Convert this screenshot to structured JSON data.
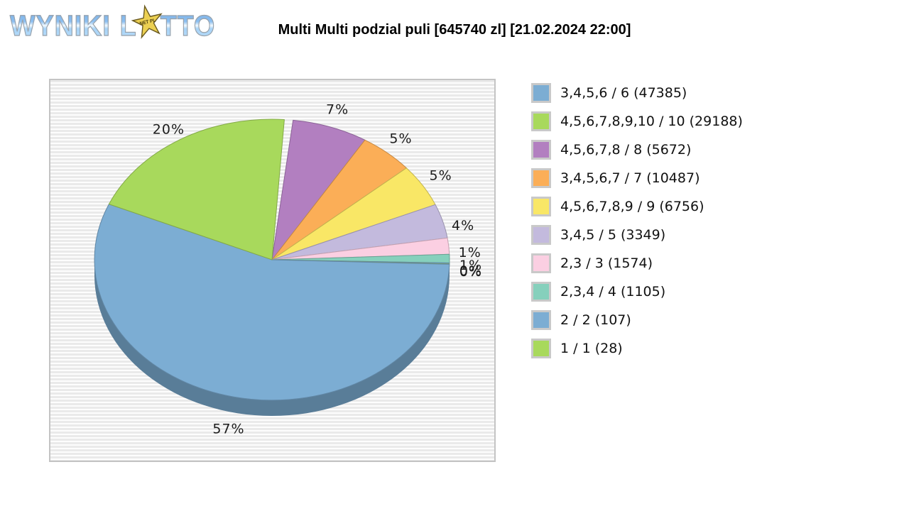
{
  "page": {
    "title": "Multi Multi podzial puli [645740 zl] [21.02.2024 22:00]"
  },
  "logo": {
    "word1": "WYNIKI",
    "word2_start": "L",
    "word2_end": "TTO",
    "star_text": "NET PL"
  },
  "chart_data": {
    "type": "pie",
    "title": "Multi Multi podzial puli [645740 zl] [21.02.2024 22:00]",
    "pool_amount_text": "645740 zl",
    "draw_datetime_text": "21.02.2024 22:00",
    "legend_position": "right",
    "categories": [
      "3,4,5,6 / 6",
      "4,5,6,7,8,9,10 / 10",
      "4,5,6,7,8 / 8",
      "3,4,5,6,7 / 7",
      "4,5,6,7,8,9 / 9",
      "3,4,5 / 5",
      "2,3 / 3",
      "2,3,4 / 4",
      "2 / 2",
      "1 / 1"
    ],
    "winner_counts": [
      47385,
      29188,
      5672,
      10487,
      6756,
      3349,
      1574,
      1105,
      107,
      28
    ],
    "share_labels": [
      "57%",
      "20%",
      "7%",
      "5%",
      "5%",
      "4%",
      "1%",
      "1%",
      "0%",
      "0%"
    ],
    "colors": [
      "#7cadd3",
      "#a8d95c",
      "#b27fc0",
      "#fbae57",
      "#f9e766",
      "#c3badd",
      "#fbcfe2",
      "#86d0bc",
      "#7cadd3",
      "#a8d95c"
    ],
    "slices": [
      {
        "name": "start-gap",
        "color": null,
        "draw": 0.8,
        "label": null
      },
      {
        "name": "tier-8of8",
        "color": "#b27fc0",
        "draw": 7,
        "label": "7%"
      },
      {
        "name": "tier-7of7",
        "color": "#fbae57",
        "draw": 5,
        "label": "5%"
      },
      {
        "name": "tier-9of9",
        "color": "#f9e766",
        "draw": 5,
        "label": "5%"
      },
      {
        "name": "tier-5of5",
        "color": "#c3badd",
        "draw": 4,
        "label": "4%"
      },
      {
        "name": "tier-3of3",
        "color": "#fbcfe2",
        "draw": 1.9,
        "label": "1%"
      },
      {
        "name": "tier-4of4",
        "color": "#86d0bc",
        "draw": 1.0,
        "label": "1%"
      },
      {
        "name": "tier-2of2",
        "color": "#7cadd3",
        "draw": 0.12,
        "label": "0%"
      },
      {
        "name": "tier-1of1",
        "color": "#a8d95c",
        "draw": 0.04,
        "label": "0%"
      },
      {
        "name": "tier-6of6",
        "color": "#7cadd3",
        "draw": 57,
        "label": "57%"
      },
      {
        "name": "tier-10of10",
        "color": "#a8d95c",
        "draw": 20,
        "label": "20%"
      }
    ]
  },
  "legend": {
    "items": [
      {
        "label": "3,4,5,6 / 6 (47385)",
        "color": "#7cadd3"
      },
      {
        "label": "4,5,6,7,8,9,10 / 10 (29188)",
        "color": "#a8d95c"
      },
      {
        "label": "4,5,6,7,8 / 8 (5672)",
        "color": "#b27fc0"
      },
      {
        "label": "3,4,5,6,7 / 7 (10487)",
        "color": "#fbae57"
      },
      {
        "label": "4,5,6,7,8,9 / 9 (6756)",
        "color": "#f9e766"
      },
      {
        "label": "3,4,5 / 5 (3349)",
        "color": "#c3badd"
      },
      {
        "label": "2,3 / 3 (1574)",
        "color": "#fbcfe2"
      },
      {
        "label": "2,3,4 / 4 (1105)",
        "color": "#86d0bc"
      },
      {
        "label": "2 / 2 (107)",
        "color": "#7cadd3"
      },
      {
        "label": "1 / 1 (28)",
        "color": "#a8d95c"
      }
    ]
  }
}
